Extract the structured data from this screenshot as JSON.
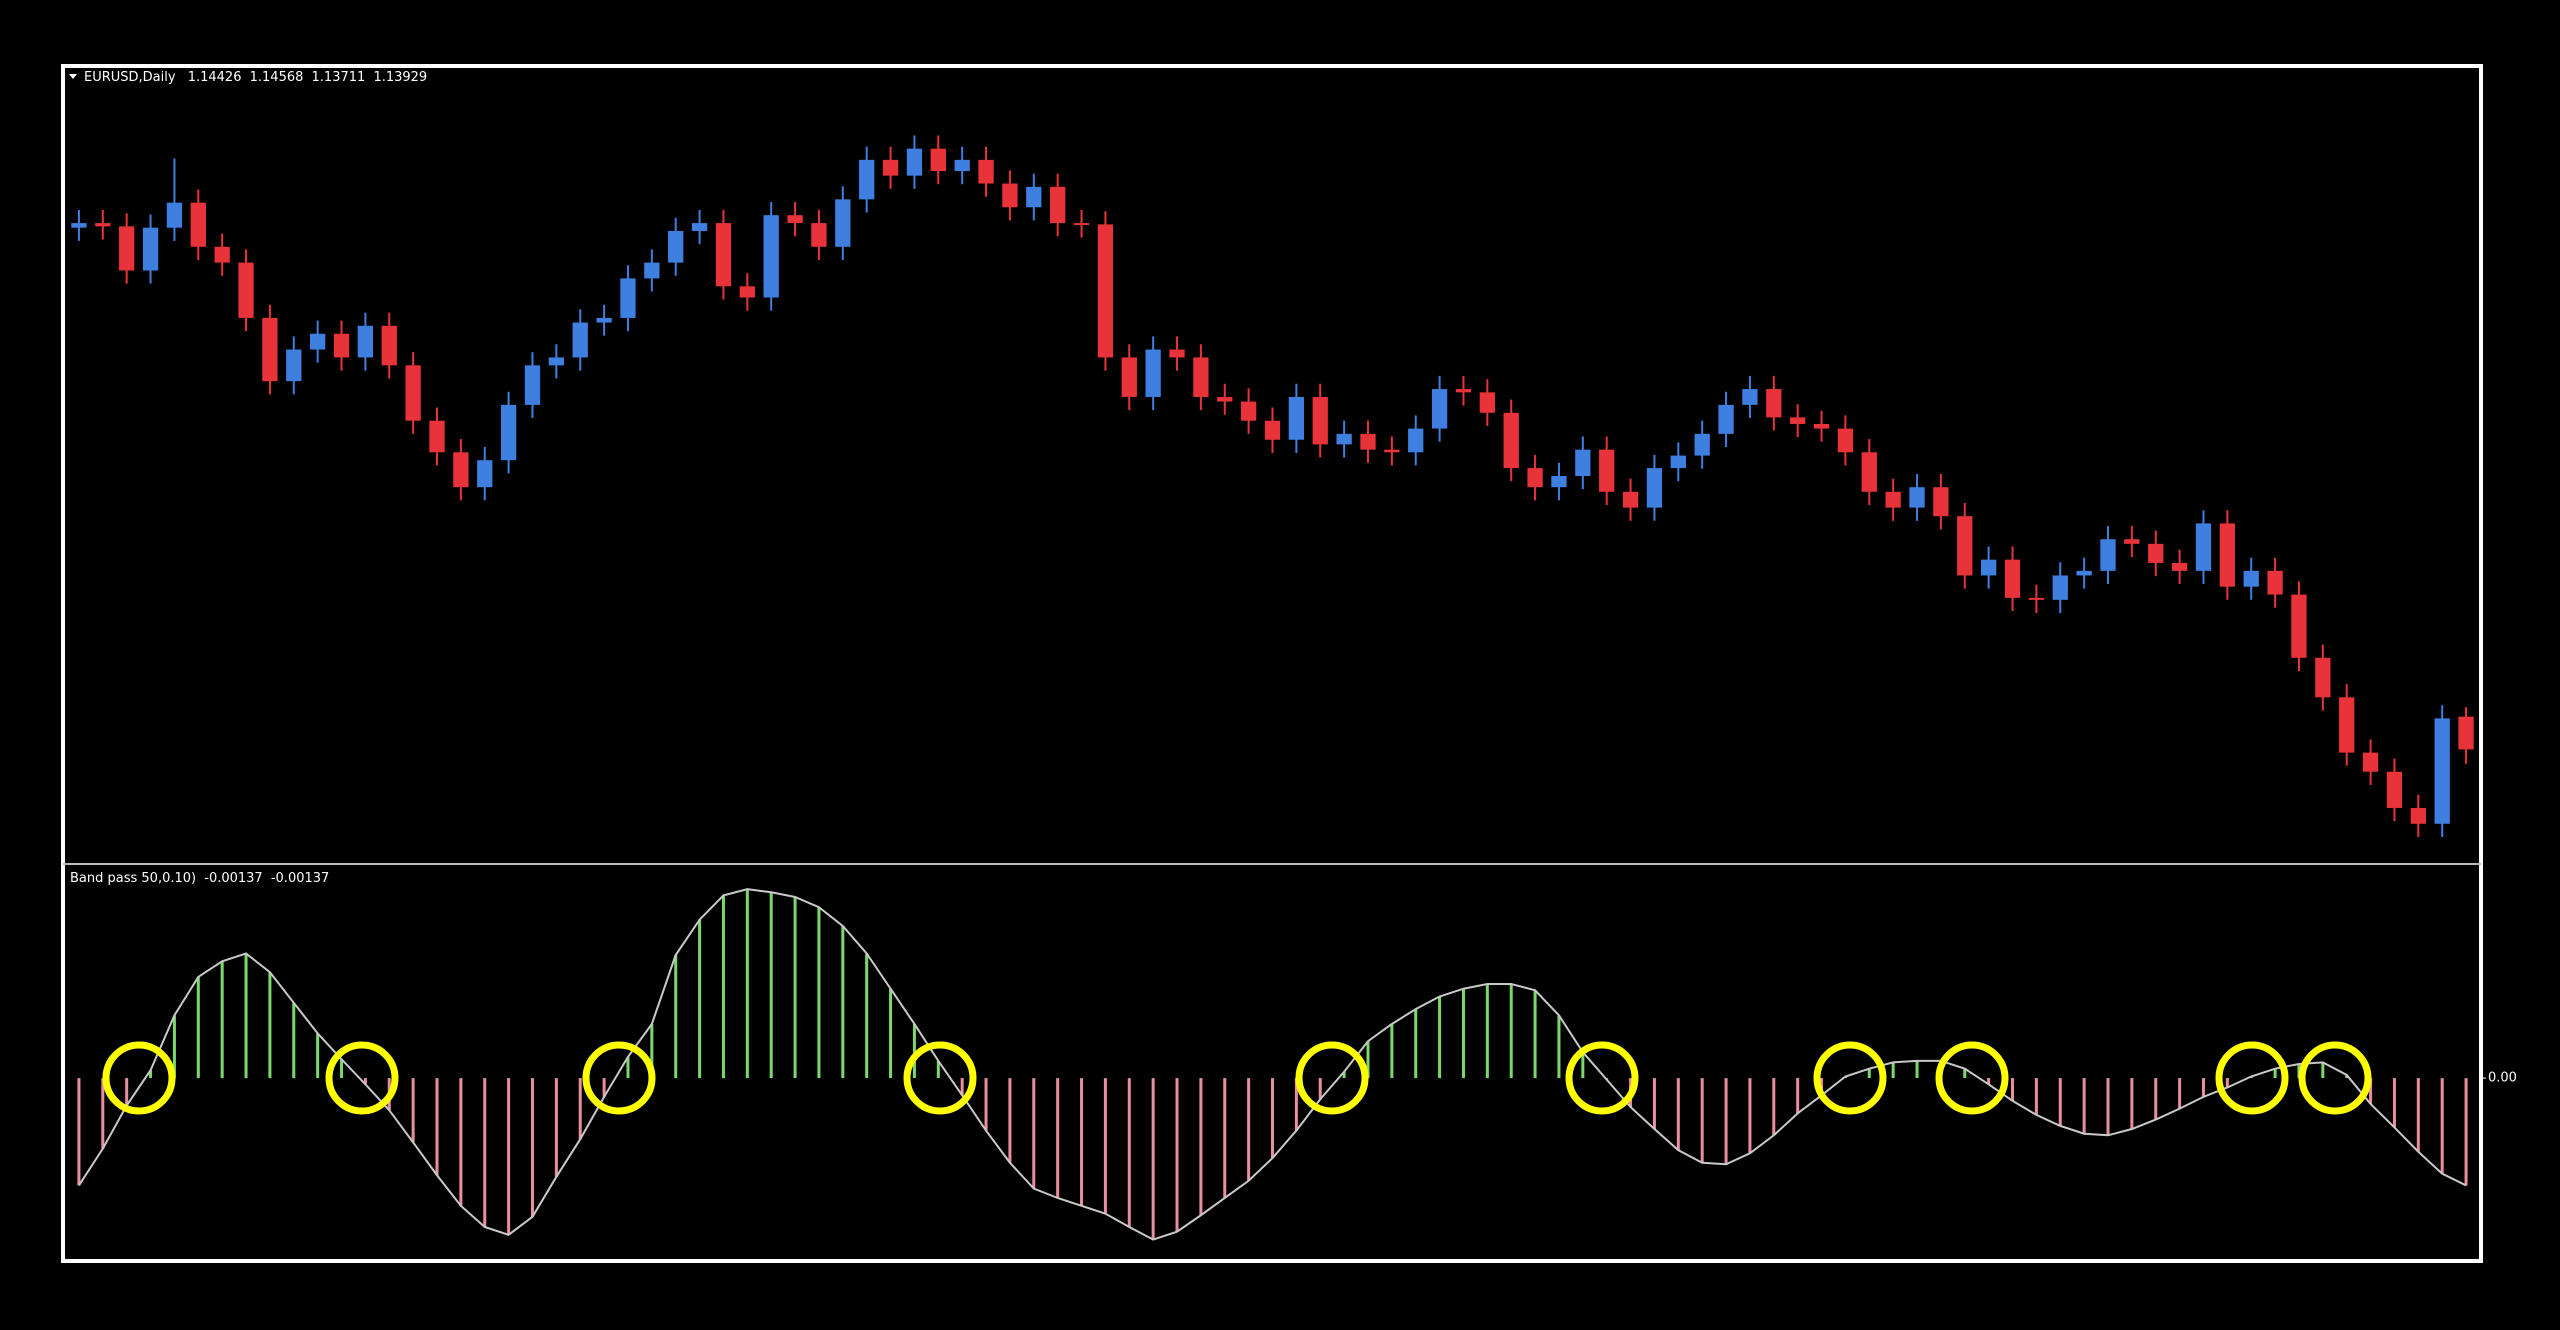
{
  "chart_data": [
    {
      "type": "candlestick",
      "title": "EURUSD,Daily",
      "open": [
        1.2185,
        1.2192,
        1.2187,
        1.212,
        1.2185,
        1.2223,
        1.2156,
        1.2132,
        1.2048,
        1.1952,
        1.2,
        1.2024,
        1.1988,
        1.2036,
        1.1976,
        1.1892,
        1.1844,
        1.1791,
        1.1832,
        1.1916,
        1.1976,
        1.1988,
        1.2041,
        1.2048,
        1.2108,
        1.2132,
        1.218,
        1.2192,
        1.2096,
        1.2079,
        1.2204,
        1.2192,
        1.2156,
        1.2228,
        1.2288,
        1.2264,
        1.2305,
        1.2271,
        1.2288,
        1.2252,
        1.2216,
        1.2247,
        1.2192,
        1.219,
        1.1988,
        1.1928,
        1.2,
        1.1988,
        1.1928,
        1.1921,
        1.1892,
        1.1863,
        1.1928,
        1.1856,
        1.1872,
        1.1848,
        1.1844,
        1.188,
        1.194,
        1.1935,
        1.1904,
        1.182,
        1.1791,
        1.1808,
        1.1848,
        1.1784,
        1.176,
        1.182,
        1.1839,
        1.1872,
        1.1916,
        1.194,
        1.1897,
        1.1887,
        1.188,
        1.1844,
        1.1784,
        1.176,
        1.1791,
        1.1747,
        1.1657,
        1.1681,
        1.1623,
        1.162,
        1.1657,
        1.1664,
        1.1712,
        1.1705,
        1.1676,
        1.1664,
        1.1736,
        1.164,
        1.1664,
        1.1628,
        1.1532,
        1.1472,
        1.1388,
        1.1359,
        1.1304,
        1.128,
        1.14426
      ],
      "high": [
        1.2212,
        1.2212,
        1.2207,
        1.2205,
        1.229,
        1.2243,
        1.2176,
        1.2152,
        1.2068,
        1.202,
        1.2044,
        1.2044,
        1.2056,
        1.2056,
        1.1996,
        1.1912,
        1.1864,
        1.1852,
        1.1936,
        1.1996,
        1.2008,
        1.2061,
        1.2068,
        1.2128,
        1.2152,
        1.22,
        1.2212,
        1.2212,
        1.2116,
        1.2224,
        1.2224,
        1.2212,
        1.2248,
        1.2308,
        1.2308,
        1.2325,
        1.2325,
        1.2308,
        1.2308,
        1.2272,
        1.2267,
        1.2267,
        1.2212,
        1.221,
        1.2008,
        1.202,
        1.202,
        1.2008,
        1.1948,
        1.1941,
        1.1912,
        1.1948,
        1.1948,
        1.1892,
        1.1892,
        1.1868,
        1.19,
        1.196,
        1.196,
        1.1955,
        1.1924,
        1.184,
        1.1828,
        1.1868,
        1.1868,
        1.1804,
        1.184,
        1.1859,
        1.1892,
        1.1936,
        1.196,
        1.196,
        1.1917,
        1.1907,
        1.19,
        1.1864,
        1.1804,
        1.1811,
        1.1811,
        1.1767,
        1.1701,
        1.1701,
        1.1643,
        1.1677,
        1.1684,
        1.1732,
        1.1732,
        1.1725,
        1.1696,
        1.1756,
        1.1756,
        1.1684,
        1.1684,
        1.1648,
        1.1552,
        1.1492,
        1.1408,
        1.1379,
        1.1324,
        1.146,
        1.14568
      ],
      "low": [
        1.2165,
        1.2167,
        1.21,
        1.21,
        1.2165,
        1.2136,
        1.2112,
        1.2028,
        1.1932,
        1.1932,
        1.198,
        1.1968,
        1.1968,
        1.1956,
        1.1872,
        1.1824,
        1.1771,
        1.1771,
        1.1812,
        1.1896,
        1.1956,
        1.1968,
        1.2021,
        1.2028,
        1.2088,
        1.2112,
        1.216,
        1.2076,
        1.2059,
        1.2059,
        1.2172,
        1.2136,
        1.2136,
        1.2208,
        1.2244,
        1.2244,
        1.2251,
        1.2251,
        1.2232,
        1.2196,
        1.2196,
        1.2172,
        1.217,
        1.1968,
        1.1908,
        1.1908,
        1.1968,
        1.1908,
        1.1901,
        1.1872,
        1.1843,
        1.1843,
        1.1836,
        1.1836,
        1.1828,
        1.1824,
        1.1824,
        1.186,
        1.1915,
        1.1884,
        1.18,
        1.1771,
        1.1771,
        1.1788,
        1.1764,
        1.174,
        1.174,
        1.18,
        1.1819,
        1.1852,
        1.1896,
        1.1877,
        1.1867,
        1.186,
        1.1824,
        1.1764,
        1.174,
        1.174,
        1.1727,
        1.1637,
        1.1637,
        1.1603,
        1.16,
        1.16,
        1.1637,
        1.1644,
        1.1685,
        1.1656,
        1.1644,
        1.1644,
        1.162,
        1.162,
        1.1608,
        1.1512,
        1.1452,
        1.1368,
        1.1339,
        1.1284,
        1.126,
        1.126,
        1.13711
      ],
      "close": [
        1.2192,
        1.2187,
        1.212,
        1.2185,
        1.2223,
        1.2156,
        1.2132,
        1.2048,
        1.1952,
        1.2,
        1.2024,
        1.1988,
        1.2036,
        1.1976,
        1.1892,
        1.1844,
        1.1791,
        1.1832,
        1.1916,
        1.1976,
        1.1988,
        1.2041,
        1.2048,
        1.2108,
        1.2132,
        1.218,
        1.2192,
        1.2096,
        1.2079,
        1.2204,
        1.2192,
        1.2156,
        1.2228,
        1.2288,
        1.2264,
        1.2305,
        1.2271,
        1.2288,
        1.2252,
        1.2216,
        1.2247,
        1.2192,
        1.219,
        1.1988,
        1.1928,
        1.2,
        1.1988,
        1.1928,
        1.1921,
        1.1892,
        1.1863,
        1.1928,
        1.1856,
        1.1872,
        1.1848,
        1.1844,
        1.188,
        1.194,
        1.1935,
        1.1904,
        1.182,
        1.1791,
        1.1808,
        1.1848,
        1.1784,
        1.176,
        1.182,
        1.1839,
        1.1872,
        1.1916,
        1.194,
        1.1897,
        1.1887,
        1.188,
        1.1844,
        1.1784,
        1.176,
        1.1791,
        1.1747,
        1.1657,
        1.1681,
        1.1623,
        1.162,
        1.1657,
        1.1664,
        1.1712,
        1.1705,
        1.1676,
        1.1664,
        1.1736,
        1.164,
        1.1664,
        1.1628,
        1.1532,
        1.1472,
        1.1388,
        1.1359,
        1.1304,
        1.128,
        1.144,
        1.13929
      ],
      "ylim": [
        1.1225,
        1.2391
      ],
      "up_color": "#3f7fe0",
      "down_color": "#e8333a"
    },
    {
      "type": "histogram",
      "title": "Band pass 50,0.10)",
      "values": [
        -0.00137,
        -0.0009,
        -0.00035,
        0.0001,
        0.0008,
        0.00129,
        0.00149,
        0.00159,
        0.00135,
        0.00096,
        0.00057,
        0.00024,
        -8e-05,
        -0.00041,
        -0.00082,
        -0.00124,
        -0.00163,
        -0.0019,
        -0.002,
        -0.00177,
        -0.00126,
        -0.00078,
        -0.00024,
        0.00027,
        0.00069,
        0.00157,
        0.00202,
        0.00233,
        0.00241,
        0.00237,
        0.00231,
        0.00218,
        0.00194,
        0.00159,
        0.00114,
        0.00069,
        0.00022,
        -0.00022,
        -0.00067,
        -0.00108,
        -0.00141,
        -0.00153,
        -0.00163,
        -0.00173,
        -0.0019,
        -0.00206,
        -0.00196,
        -0.00175,
        -0.00153,
        -0.00131,
        -0.00102,
        -0.00067,
        -0.00027,
        8e-05,
        0.00047,
        0.00069,
        0.00088,
        0.00104,
        0.00114,
        0.0012,
        0.0012,
        0.00112,
        0.0008,
        0.00033,
        -2e-05,
        -0.00037,
        -0.00065,
        -0.00092,
        -0.00108,
        -0.0011,
        -0.00096,
        -0.00073,
        -0.00045,
        -0.00022,
        2e-05,
        0.00012,
        0.0002,
        0.00022,
        0.00022,
        0.00012,
        -8e-05,
        -0.00029,
        -0.00047,
        -0.00061,
        -0.00071,
        -0.00073,
        -0.00065,
        -0.00053,
        -0.00039,
        -0.00024,
        -0.00012,
        2e-05,
        0.00012,
        0.00018,
        0.0002,
        4e-05,
        -0.00033,
        -0.00063,
        -0.00094,
        -0.00122,
        -0.00137
      ],
      "ylim": [
        -0.00227,
        0.00268
      ],
      "yticks": [
        {
          "value": 0,
          "label": "0.00"
        }
      ],
      "up_color": "#7bd96c",
      "down_color": "#e88fa0",
      "line_color": "#c9c9c9"
    }
  ]
}
